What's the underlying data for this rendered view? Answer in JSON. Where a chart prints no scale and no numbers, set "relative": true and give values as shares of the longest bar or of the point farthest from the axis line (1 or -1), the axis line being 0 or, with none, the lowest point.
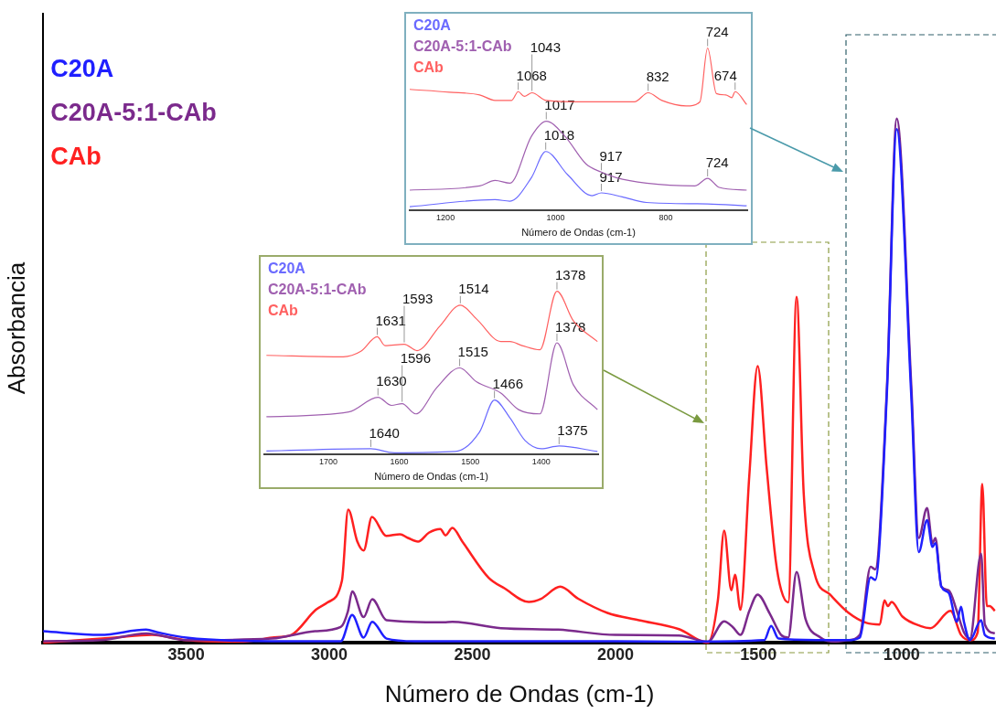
{
  "chart_data": [
    {
      "type": "line",
      "xlabel": "Número de Ondas (cm-1)",
      "ylabel": "Absorbancia",
      "relative": true,
      "legend": "top left",
      "marker": "none",
      "xlim": [
        4000,
        670
      ],
      "xticks": [
        3500,
        3000,
        2500,
        2000,
        1500,
        1000
      ],
      "series": [
        {
          "name": "C20A",
          "color": "#1f1fff",
          "x": [
            4000,
            3800,
            3640,
            3600,
            3500,
            3200,
            2960,
            2920,
            2880,
            2850,
            2800,
            2700,
            2000,
            1778,
            1480,
            1456,
            1430,
            1300,
            1188,
            1146,
            1108,
            1092,
            1051,
            1017,
            966,
            940,
            911,
            892,
            882,
            861,
            835,
            807,
            792,
            782,
            761,
            722,
            709,
            674
          ],
          "values": [
            0.022,
            0.015,
            0.025,
            0.02,
            0.01,
            0.003,
            0.003,
            0.053,
            0.01,
            0.04,
            0.008,
            0.003,
            0.003,
            0.002,
            0.005,
            0.032,
            0.008,
            0.005,
            0.005,
            0.01,
            0.125,
            0.12,
            0.48,
            0.98,
            0.47,
            0.173,
            0.234,
            0.183,
            0.19,
            0.107,
            0.095,
            0.04,
            0.069,
            0.04,
            0.005,
            0.043,
            0.015,
            0.008
          ]
        },
        {
          "name": "C20A-5:1-CAb",
          "color": "#7b2a8c",
          "x": [
            4000,
            3800,
            3640,
            3500,
            3200,
            3050,
            2960,
            2935,
            2920,
            2880,
            2850,
            2800,
            2600,
            2570,
            2400,
            2200,
            2000,
            1778,
            1677,
            1620,
            1590,
            1563,
            1532,
            1503,
            1461,
            1421,
            1396,
            1367,
            1336,
            1283,
            1231,
            1188,
            1146,
            1108,
            1092,
            1051,
            1017,
            966,
            940,
            911,
            892,
            882,
            861,
            835,
            807,
            782,
            761,
            722,
            709,
            674
          ],
          "values": [
            0.003,
            0.005,
            0.018,
            0.005,
            0.008,
            0.022,
            0.03,
            0.06,
            0.098,
            0.049,
            0.083,
            0.043,
            0.039,
            0.04,
            0.028,
            0.025,
            0.015,
            0.014,
            0.002,
            0.041,
            0.03,
            0.015,
            0.061,
            0.092,
            0.056,
            0.015,
            0.01,
            0.135,
            0.046,
            0.01,
            0.002,
            0.005,
            0.015,
            0.145,
            0.14,
            0.49,
            1.0,
            0.49,
            0.2,
            0.257,
            0.19,
            0.2,
            0.107,
            0.1,
            0.061,
            0.02,
            0.008,
            0.17,
            0.035,
            0.018
          ]
        },
        {
          "name": "CAb",
          "color": "#ff2020",
          "x": [
            4000,
            3750,
            3620,
            3500,
            3300,
            3200,
            3133,
            3047,
            3006,
            2956,
            2934,
            2902,
            2880,
            2851,
            2801,
            2753,
            2725,
            2690,
            2652,
            2612,
            2594,
            2570,
            2535,
            2443,
            2388,
            2303,
            2260,
            2193,
            2130,
            2028,
            1918,
            1778,
            1677,
            1642,
            1620,
            1595,
            1582,
            1563,
            1532,
            1503,
            1472,
            1440,
            1421,
            1396,
            1367,
            1342,
            1304,
            1250,
            1187,
            1123,
            1076,
            1060,
            1048,
            1035,
            997,
            934,
            899,
            829,
            792,
            759,
            734,
            718,
            702,
            692,
            674
          ],
          "values": [
            0,
            0.01,
            0.015,
            0.005,
            0.002,
            0.01,
            0.015,
            0.063,
            0.077,
            0.118,
            0.254,
            0.193,
            0.176,
            0.24,
            0.204,
            0.207,
            0.2,
            0.193,
            0.21,
            0.217,
            0.205,
            0.219,
            0.193,
            0.124,
            0.104,
            0.078,
            0.084,
            0.107,
            0.084,
            0.057,
            0.043,
            0.026,
            0,
            0.081,
            0.214,
            0.1,
            0.13,
            0.063,
            0.32,
            0.528,
            0.337,
            0.158,
            0.101,
            0.077,
            0.66,
            0.285,
            0.132,
            0.092,
            0.058,
            0.038,
            0.035,
            0.081,
            0.07,
            0.078,
            0.05,
            0.032,
            0.028,
            0.061,
            0.015,
            0.005,
            0.02,
            0.303,
            0.07,
            0.07,
            0.061
          ]
        }
      ]
    },
    {
      "type": "line",
      "xlabel": "Número de Ondas (cm-1)",
      "relative": true,
      "legend": "top left",
      "marker": "none",
      "xlim": [
        1790,
        1320
      ],
      "xticks": [
        1700,
        1600,
        1500,
        1400
      ],
      "series": [
        {
          "name": "C20A",
          "color": "#6a6aff",
          "x": [
            1787,
            1640,
            1607,
            1521,
            1487,
            1466,
            1444,
            1423,
            1400,
            1375,
            1321
          ],
          "values": [
            0.02,
            0.034,
            0.009,
            0.017,
            0.137,
            0.333,
            0.222,
            0.085,
            0.034,
            0.051,
            0.017
          ]
        },
        {
          "name": "C20A-5:1-CAb",
          "color": "#a060b0",
          "x": [
            1787,
            1671,
            1630,
            1611,
            1596,
            1577,
            1547,
            1515,
            1491,
            1457,
            1432,
            1402,
            1378,
            1355,
            1321
          ],
          "values": [
            0.231,
            0.26,
            0.35,
            0.3,
            0.311,
            0.248,
            0.41,
            0.53,
            0.444,
            0.376,
            0.274,
            0.248,
            0.684,
            0.427,
            0.274
          ]
        },
        {
          "name": "CAb",
          "color": "#ff6060",
          "x": [
            1787,
            1679,
            1654,
            1631,
            1620,
            1593,
            1575,
            1543,
            1514,
            1491,
            1457,
            1444,
            1427,
            1402,
            1378,
            1355,
            1321
          ],
          "values": [
            0.607,
            0.598,
            0.632,
            0.721,
            0.667,
            0.675,
            0.636,
            0.786,
            0.915,
            0.829,
            0.692,
            0.692,
            0.667,
            0.641,
            1.0,
            0.82,
            0.692
          ]
        }
      ],
      "annotations": [
        {
          "text": "1631",
          "x": 1631,
          "y": 0.721
        },
        {
          "text": "1593",
          "x": 1593,
          "y": 0.675
        },
        {
          "text": "1514",
          "x": 1514,
          "y": 0.915
        },
        {
          "text": "1378",
          "x": 1378,
          "y": 1.0
        },
        {
          "text": "1630",
          "x": 1630,
          "y": 0.35
        },
        {
          "text": "1596",
          "x": 1596,
          "y": 0.311
        },
        {
          "text": "1515",
          "x": 1515,
          "y": 0.53
        },
        {
          "text": "1378",
          "x": 1378,
          "y": 0.684
        },
        {
          "text": "1640",
          "x": 1640,
          "y": 0.034
        },
        {
          "text": "1466",
          "x": 1466,
          "y": 0.333
        },
        {
          "text": "1375",
          "x": 1375,
          "y": 0.051
        }
      ]
    },
    {
      "type": "line",
      "xlabel": "Número de Ondas (cm-1)",
      "relative": true,
      "legend": "top left",
      "marker": "none",
      "xlim": [
        1265,
        652
      ],
      "xticks": [
        1200,
        1000,
        800
      ],
      "series": [
        {
          "name": "C20A",
          "color": "#6a6aff",
          "x": [
            1265,
            1110,
            1083,
            1044,
            1018,
            978,
            934,
            917,
            879,
            835,
            724,
            653
          ],
          "values": [
            0.022,
            0.065,
            0.056,
            0.201,
            0.362,
            0.218,
            0.09,
            0.107,
            0.082,
            0.048,
            0.039,
            0.027
          ]
        },
        {
          "name": "C20A-5:1-CAb",
          "color": "#a060b0",
          "x": [
            1265,
            1138,
            1110,
            1083,
            1044,
            1017,
            983,
            945,
            917,
            890,
            835,
            747,
            724,
            703,
            653
          ],
          "values": [
            0.124,
            0.15,
            0.184,
            0.167,
            0.456,
            0.549,
            0.456,
            0.286,
            0.235,
            0.201,
            0.167,
            0.15,
            0.197,
            0.141,
            0.124
          ]
        },
        {
          "name": "CAb",
          "color": "#ff6060",
          "x": [
            1265,
            1193,
            1138,
            1110,
            1080,
            1068,
            1057,
            1043,
            1017,
            945,
            857,
            832,
            807,
            763,
            738,
            724,
            708,
            691,
            680,
            674,
            653
          ],
          "values": [
            0.745,
            0.728,
            0.711,
            0.677,
            0.677,
            0.731,
            0.702,
            0.724,
            0.677,
            0.668,
            0.668,
            0.724,
            0.677,
            0.643,
            0.668,
            1.0,
            0.719,
            0.711,
            0.694,
            0.731,
            0.651
          ]
        }
      ],
      "annotations": [
        {
          "text": "1068",
          "x": 1068,
          "y": 0.731
        },
        {
          "text": "1043",
          "x": 1043,
          "y": 0.724
        },
        {
          "text": "832",
          "x": 832,
          "y": 0.724
        },
        {
          "text": "724",
          "x": 724,
          "y": 1.0
        },
        {
          "text": "674",
          "x": 674,
          "y": 0.731
        },
        {
          "text": "1017",
          "x": 1017,
          "y": 0.549
        },
        {
          "text": "917",
          "x": 917,
          "y": 0.235
        },
        {
          "text": "724",
          "x": 724,
          "y": 0.197
        },
        {
          "text": "1018",
          "x": 1018,
          "y": 0.362
        },
        {
          "text": "917",
          "x": 917,
          "y": 0.107
        }
      ]
    }
  ]
}
